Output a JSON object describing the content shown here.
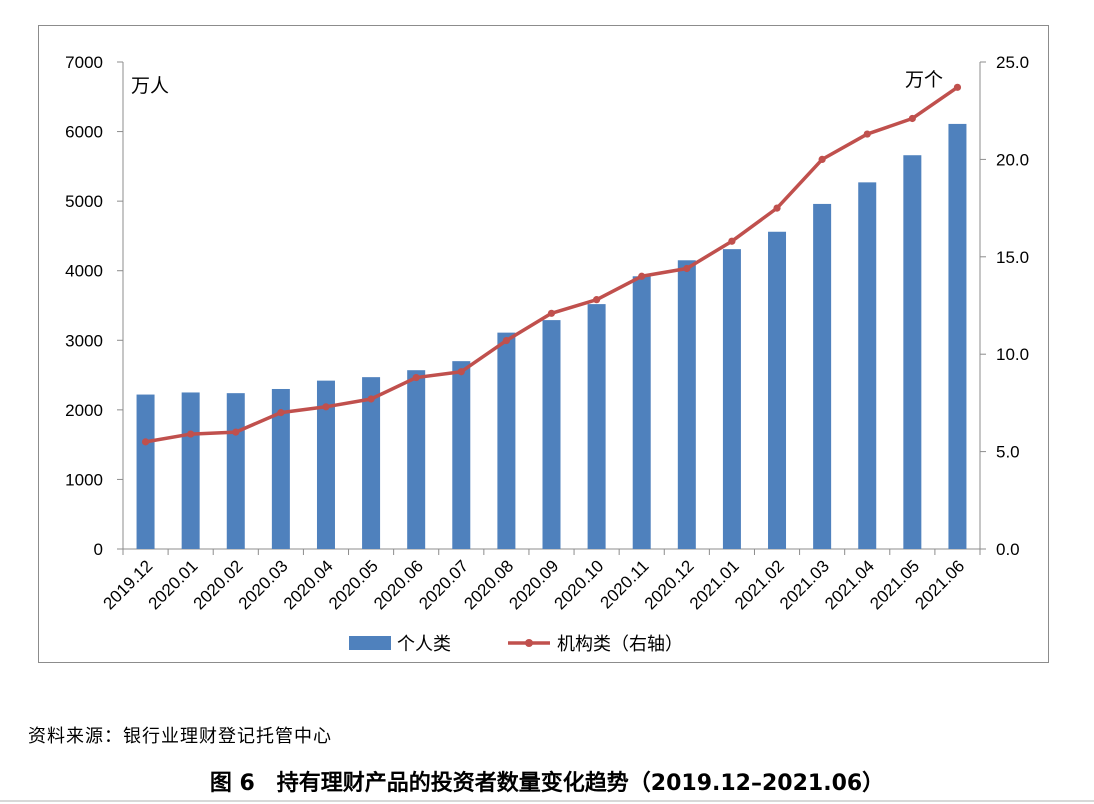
{
  "chart_data": {
    "type": "bar",
    "categories": [
      "2019.12",
      "2020.01",
      "2020.02",
      "2020.03",
      "2020.04",
      "2020.05",
      "2020.06",
      "2020.07",
      "2020.08",
      "2020.09",
      "2020.10",
      "2020.11",
      "2020.12",
      "2021.01",
      "2021.02",
      "2021.03",
      "2021.04",
      "2021.05",
      "2021.06"
    ],
    "series": [
      {
        "name": "个人类",
        "type": "bar",
        "axis": "left",
        "color": "#4f81bd",
        "values": [
          2220,
          2250,
          2240,
          2300,
          2420,
          2470,
          2570,
          2700,
          3110,
          3290,
          3520,
          3920,
          4150,
          4310,
          4560,
          4960,
          5270,
          5660,
          6110
        ]
      },
      {
        "name": "机构类（右轴）",
        "type": "line",
        "axis": "right",
        "color": "#c0504d",
        "values": [
          5.5,
          5.9,
          6.0,
          7.0,
          7.3,
          7.7,
          8.8,
          9.1,
          10.7,
          12.1,
          12.8,
          14.0,
          14.4,
          15.8,
          17.5,
          20.0,
          21.3,
          22.1,
          23.7
        ]
      }
    ],
    "y_left": {
      "unit_label": "万人",
      "ylim": [
        0,
        7000
      ],
      "ticks": [
        "0",
        "1000",
        "2000",
        "3000",
        "4000",
        "5000",
        "6000",
        "7000"
      ]
    },
    "y_right": {
      "unit_label": "万个",
      "ylim": [
        0,
        25
      ],
      "ticks": [
        "0.0",
        "5.0",
        "10.0",
        "15.0",
        "20.0",
        "25.0"
      ]
    },
    "grid": false,
    "legend_placement": "bottom"
  },
  "source_note": "资料来源：银行业理财登记托管中心",
  "caption": "图 6　持有理财产品的投资者数量变化趋势（2019.12–2021.06）"
}
